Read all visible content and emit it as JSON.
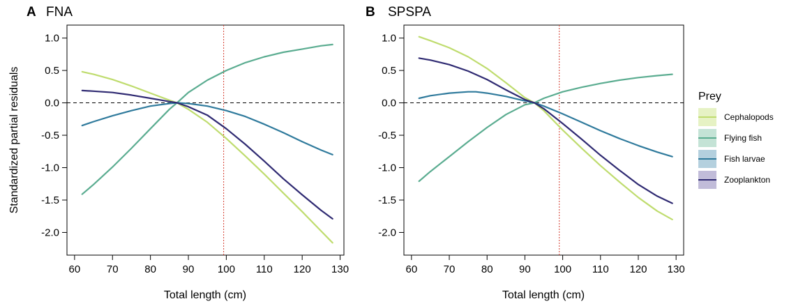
{
  "chart_data": [
    {
      "type": "line",
      "panel_label": "A",
      "title": "FNA",
      "xlabel": "Total length (cm)",
      "ylabel": "Standardized partial residuals",
      "xlim": [
        58,
        131
      ],
      "ylim": [
        -2.35,
        1.2
      ],
      "xticks": [
        60,
        70,
        80,
        90,
        100,
        110,
        120,
        130
      ],
      "yticks": [
        -2.0,
        -1.5,
        -1.0,
        -0.5,
        0.0,
        0.5,
        1.0
      ],
      "xtick_labels": [
        "60",
        "70",
        "80",
        "90",
        "100",
        "110",
        "120",
        "130"
      ],
      "ytick_labels": [
        "-2.0",
        "-1.5",
        "-1.0",
        "-0.5",
        "0.0",
        "0.5",
        "1.0"
      ],
      "hline": 0.0,
      "vline": 99.3,
      "grid": false,
      "series": [
        {
          "name": "Cephalopods",
          "color": "#bfdc6e",
          "x": [
            62,
            65,
            70,
            75,
            80,
            85,
            87,
            90,
            95,
            100,
            105,
            110,
            115,
            120,
            125,
            128
          ],
          "y": [
            0.48,
            0.44,
            0.36,
            0.26,
            0.15,
            0.04,
            0.0,
            -0.1,
            -0.3,
            -0.55,
            -0.82,
            -1.1,
            -1.39,
            -1.68,
            -1.98,
            -2.16
          ]
        },
        {
          "name": "Flying fish",
          "color": "#5aac90",
          "x": [
            62,
            65,
            70,
            75,
            80,
            85,
            87,
            90,
            95,
            100,
            105,
            110,
            115,
            120,
            125,
            128
          ],
          "y": [
            -1.41,
            -1.26,
            -0.99,
            -0.7,
            -0.4,
            -0.1,
            0.0,
            0.16,
            0.35,
            0.5,
            0.62,
            0.71,
            0.78,
            0.83,
            0.88,
            0.9
          ]
        },
        {
          "name": "Fish larvae",
          "color": "#2f7a9c",
          "x": [
            62,
            65,
            70,
            75,
            80,
            85,
            87,
            90,
            95,
            100,
            105,
            110,
            115,
            120,
            125,
            128
          ],
          "y": [
            -0.35,
            -0.29,
            -0.2,
            -0.12,
            -0.05,
            -0.01,
            0.0,
            -0.01,
            -0.05,
            -0.12,
            -0.21,
            -0.33,
            -0.46,
            -0.6,
            -0.73,
            -0.8
          ]
        },
        {
          "name": "Zooplankton",
          "color": "#2f2a72",
          "x": [
            62,
            65,
            70,
            75,
            80,
            85,
            87,
            90,
            95,
            100,
            105,
            110,
            115,
            120,
            125,
            128
          ],
          "y": [
            0.19,
            0.18,
            0.16,
            0.12,
            0.07,
            0.02,
            0.0,
            -0.06,
            -0.19,
            -0.4,
            -0.64,
            -0.9,
            -1.17,
            -1.42,
            -1.66,
            -1.79
          ]
        }
      ]
    },
    {
      "type": "line",
      "panel_label": "B",
      "title": "SPSPA",
      "xlabel": "Total length (cm)",
      "ylabel": "",
      "xlim": [
        58,
        132
      ],
      "ylim": [
        -2.35,
        1.2
      ],
      "xticks": [
        60,
        70,
        80,
        90,
        100,
        110,
        120,
        130
      ],
      "yticks": [
        -2.0,
        -1.5,
        -1.0,
        -0.5,
        0.0,
        0.5,
        1.0
      ],
      "xtick_labels": [
        "60",
        "70",
        "80",
        "90",
        "100",
        "110",
        "120",
        "130"
      ],
      "ytick_labels": [
        "-2.0",
        "-1.5",
        "-1.0",
        "-0.5",
        "0.0",
        "0.5",
        "1.0"
      ],
      "hline": 0.0,
      "vline": 99.1,
      "grid": false,
      "series": [
        {
          "name": "Cephalopods",
          "color": "#bfdc6e",
          "x": [
            62,
            65,
            70,
            75,
            80,
            85,
            90,
            92.5,
            95,
            100,
            105,
            110,
            115,
            120,
            125,
            129
          ],
          "y": [
            1.02,
            0.96,
            0.85,
            0.71,
            0.53,
            0.31,
            0.08,
            0.0,
            -0.12,
            -0.42,
            -0.7,
            -0.97,
            -1.22,
            -1.46,
            -1.67,
            -1.8
          ]
        },
        {
          "name": "Flying fish",
          "color": "#5aac90",
          "x": [
            62,
            65,
            70,
            75,
            80,
            85,
            90,
            92.5,
            95,
            100,
            105,
            110,
            115,
            120,
            125,
            129
          ],
          "y": [
            -1.21,
            -1.06,
            -0.83,
            -0.6,
            -0.38,
            -0.18,
            -0.03,
            0.0,
            0.07,
            0.17,
            0.24,
            0.3,
            0.35,
            0.39,
            0.42,
            0.44
          ]
        },
        {
          "name": "Fish larvae",
          "color": "#2f7a9c",
          "x": [
            62,
            65,
            70,
            75,
            77,
            80,
            85,
            90,
            92.5,
            95,
            100,
            105,
            110,
            115,
            120,
            125,
            129
          ],
          "y": [
            0.07,
            0.11,
            0.15,
            0.17,
            0.17,
            0.15,
            0.1,
            0.03,
            0.0,
            -0.05,
            -0.17,
            -0.3,
            -0.43,
            -0.55,
            -0.66,
            -0.76,
            -0.83
          ]
        },
        {
          "name": "Zooplankton",
          "color": "#2f2a72",
          "x": [
            62,
            65,
            70,
            75,
            80,
            85,
            90,
            92.5,
            95,
            100,
            105,
            110,
            115,
            120,
            125,
            129
          ],
          "y": [
            0.69,
            0.66,
            0.59,
            0.49,
            0.36,
            0.2,
            0.05,
            0.0,
            -0.09,
            -0.32,
            -0.56,
            -0.81,
            -1.04,
            -1.26,
            -1.44,
            -1.55
          ]
        }
      ]
    }
  ],
  "legend": {
    "title": "Prey",
    "items": [
      {
        "label": "Cephalopods",
        "line_color": "#bfdc6e",
        "fill_color": "#e6f2c4"
      },
      {
        "label": "Flying fish",
        "line_color": "#5aac90",
        "fill_color": "#c4e3d6"
      },
      {
        "label": "Fish larvae",
        "line_color": "#2f7a9c",
        "fill_color": "#b4d0de"
      },
      {
        "label": "Zooplankton",
        "line_color": "#2f2a72",
        "fill_color": "#c1bcd9"
      }
    ]
  }
}
